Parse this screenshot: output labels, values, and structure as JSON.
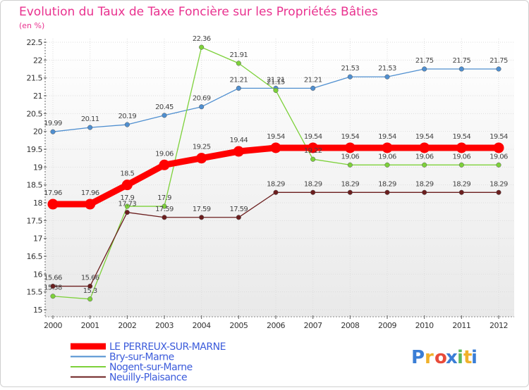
{
  "chart_data": {
    "type": "line",
    "title": "Evolution du Taux de Taxe Foncière sur les Propriétés Bâties",
    "subtitle": "(en %)",
    "xlabel": "",
    "ylabel": "",
    "x": [
      "2000",
      "2001",
      "2002",
      "2003",
      "2004",
      "2005",
      "2006",
      "2007",
      "2008",
      "2009",
      "2010",
      "2011",
      "2012"
    ],
    "yticks": [
      "15",
      "15.5",
      "16",
      "16.5",
      "17",
      "17.5",
      "18",
      "18.5",
      "19",
      "19.5",
      "20",
      "20.5",
      "21",
      "21.5",
      "22",
      "22.5"
    ],
    "ylim": [
      15,
      22.5
    ],
    "grid": true,
    "legend_position": "bottom-left",
    "series": [
      {
        "name": "LE PERREUX-SUR-MARNE",
        "color": "#ff0000",
        "values": [
          17.96,
          17.96,
          18.5,
          19.06,
          19.25,
          19.44,
          19.54,
          19.54,
          19.54,
          19.54,
          19.54,
          19.54,
          19.54
        ],
        "labels": [
          "17.96",
          "17.96",
          "18.5",
          "19.06",
          "19.25",
          "19.44",
          "19.54",
          "19.54",
          "19.54",
          "19.54",
          "19.54",
          "19.54",
          "19.54"
        ]
      },
      {
        "name": "Bry-sur-Marne",
        "color": "#4f8fd0",
        "values": [
          19.99,
          20.11,
          20.19,
          20.45,
          20.69,
          21.21,
          21.21,
          21.21,
          21.53,
          21.53,
          21.75,
          21.75,
          21.75
        ],
        "labels": [
          "19.99",
          "20.11",
          "20.19",
          "20.45",
          "20.69",
          "21.21",
          "21.21",
          "21.21",
          "21.53",
          "21.53",
          "21.75",
          "21.75",
          "21.75"
        ]
      },
      {
        "name": "Nogent-sur-Marne",
        "color": "#7dd13a",
        "values": [
          15.38,
          15.3,
          17.9,
          17.9,
          22.36,
          21.91,
          21.15,
          19.22,
          19.06,
          19.06,
          19.06,
          19.06,
          19.06
        ],
        "labels": [
          "15.38",
          "15.3",
          "17.9",
          "17.9",
          "22.36",
          "21.91",
          "21.15",
          "19.22",
          "19.06",
          "19.06",
          "19.06",
          "19.06",
          "19.06"
        ]
      },
      {
        "name": "Neuilly-Plaisance",
        "color": "#6b1e1e",
        "values": [
          15.66,
          15.66,
          17.73,
          17.59,
          17.59,
          17.59,
          18.29,
          18.29,
          18.29,
          18.29,
          18.29,
          18.29,
          18.29
        ],
        "labels": [
          "15.66",
          "15.66",
          "17.73",
          "17.59",
          "17.59",
          "17.59",
          "18.29",
          "18.29",
          "18.29",
          "18.29",
          "18.29",
          "18.29",
          "18.29"
        ]
      }
    ]
  },
  "brand": {
    "letters": [
      "P",
      "r",
      "o",
      "x",
      "i",
      "t",
      "i"
    ],
    "colors": [
      "#3a7ed6",
      "#f0b12a",
      "#e84b3a",
      "#3a7ed6",
      "#5cb85c",
      "#f0b12a",
      "#3a7ed6"
    ]
  }
}
